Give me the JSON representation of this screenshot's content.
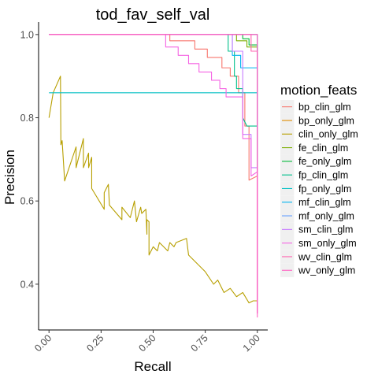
{
  "chart_data": {
    "type": "line",
    "title": "tod_fav_self_val",
    "xlabel": "Recall",
    "ylabel": "Precision",
    "xlim": [
      -0.05,
      1.05
    ],
    "ylim": [
      0.29,
      1.03
    ],
    "x_ticks": [
      0.0,
      0.25,
      0.5,
      0.75,
      1.0
    ],
    "x_tick_labels": [
      "0.00",
      "0.25",
      "0.50",
      "0.75",
      "1.00"
    ],
    "y_ticks": [
      0.4,
      0.6,
      0.8,
      1.0
    ],
    "y_tick_labels": [
      "0.4",
      "0.6",
      "0.8",
      "1.0"
    ],
    "grid": false,
    "legend": {
      "title": "motion_feats",
      "position": "right"
    },
    "series": [
      {
        "name": "bp_clin_glm",
        "color": "#F8766D",
        "points": [
          [
            0,
            1.0
          ],
          [
            0.58,
            1.0
          ],
          [
            0.58,
            0.985
          ],
          [
            0.7,
            0.985
          ],
          [
            0.7,
            0.965
          ],
          [
            0.76,
            0.965
          ],
          [
            0.76,
            0.945
          ],
          [
            0.83,
            0.945
          ],
          [
            0.83,
            0.92
          ],
          [
            0.87,
            0.92
          ],
          [
            0.87,
            0.9
          ],
          [
            0.91,
            0.9
          ],
          [
            0.91,
            0.86
          ],
          [
            0.94,
            0.86
          ],
          [
            0.94,
            0.78
          ],
          [
            0.96,
            0.78
          ],
          [
            0.96,
            0.65
          ],
          [
            1.0,
            0.66
          ],
          [
            1.0,
            0.33
          ]
        ]
      },
      {
        "name": "bp_only_glm",
        "color": "#DE8C00",
        "points": [
          [
            0,
            1.0
          ],
          [
            1.0,
            1.0
          ],
          [
            1.0,
            0.33
          ]
        ]
      },
      {
        "name": "clin_only_glm",
        "color": "#B79F00",
        "points": [
          [
            0,
            0.8
          ],
          [
            0.02,
            0.86
          ],
          [
            0.055,
            0.9
          ],
          [
            0.057,
            0.735
          ],
          [
            0.063,
            0.745
          ],
          [
            0.075,
            0.648
          ],
          [
            0.13,
            0.73
          ],
          [
            0.13,
            0.68
          ],
          [
            0.165,
            0.75
          ],
          [
            0.165,
            0.68
          ],
          [
            0.19,
            0.715
          ],
          [
            0.19,
            0.68
          ],
          [
            0.205,
            0.705
          ],
          [
            0.205,
            0.63
          ],
          [
            0.265,
            0.58
          ],
          [
            0.265,
            0.62
          ],
          [
            0.285,
            0.64
          ],
          [
            0.29,
            0.59
          ],
          [
            0.35,
            0.555
          ],
          [
            0.35,
            0.585
          ],
          [
            0.39,
            0.56
          ],
          [
            0.41,
            0.6
          ],
          [
            0.42,
            0.55
          ],
          [
            0.44,
            0.585
          ],
          [
            0.445,
            0.57
          ],
          [
            0.465,
            0.58
          ],
          [
            0.47,
            0.52
          ],
          [
            0.47,
            0.555
          ],
          [
            0.48,
            0.55
          ],
          [
            0.48,
            0.47
          ],
          [
            0.5,
            0.49
          ],
          [
            0.52,
            0.48
          ],
          [
            0.53,
            0.5
          ],
          [
            0.57,
            0.48
          ],
          [
            0.58,
            0.5
          ],
          [
            0.6,
            0.49
          ],
          [
            0.61,
            0.5
          ],
          [
            0.66,
            0.51
          ],
          [
            0.67,
            0.47
          ],
          [
            0.75,
            0.43
          ],
          [
            0.79,
            0.4
          ],
          [
            0.81,
            0.41
          ],
          [
            0.84,
            0.38
          ],
          [
            0.87,
            0.39
          ],
          [
            0.9,
            0.37
          ],
          [
            0.93,
            0.38
          ],
          [
            0.96,
            0.355
          ],
          [
            0.98,
            0.36
          ],
          [
            1.0,
            0.36
          ]
        ]
      },
      {
        "name": "fe_clin_glm",
        "color": "#7CAE00",
        "points": [
          [
            0,
            1.0
          ],
          [
            0.9,
            1.0
          ],
          [
            0.9,
            0.985
          ],
          [
            0.95,
            0.985
          ],
          [
            0.95,
            0.97
          ],
          [
            1.0,
            0.97
          ],
          [
            1.0,
            0.33
          ]
        ]
      },
      {
        "name": "fe_only_glm",
        "color": "#00BA38",
        "points": [
          [
            0,
            1.0
          ],
          [
            0.93,
            1.0
          ],
          [
            0.93,
            0.99
          ],
          [
            0.96,
            0.99
          ],
          [
            0.96,
            0.975
          ],
          [
            1.0,
            0.975
          ],
          [
            1.0,
            0.33
          ]
        ]
      },
      {
        "name": "fp_clin_glm",
        "color": "#00C08B",
        "points": [
          [
            0,
            1.0
          ],
          [
            0.86,
            1.0
          ],
          [
            0.86,
            0.96
          ],
          [
            0.89,
            0.96
          ],
          [
            0.89,
            0.9
          ],
          [
            0.9,
            0.9
          ],
          [
            0.9,
            0.87
          ],
          [
            0.93,
            0.87
          ],
          [
            0.93,
            0.8
          ],
          [
            0.95,
            0.78
          ],
          [
            1.0,
            0.78
          ],
          [
            1.0,
            0.33
          ]
        ]
      },
      {
        "name": "fp_only_glm",
        "color": "#00BFC4",
        "points": [
          [
            0,
            0.86
          ],
          [
            1.0,
            0.86
          ],
          [
            1.0,
            0.33
          ]
        ]
      },
      {
        "name": "mf_clin_glm",
        "color": "#00B4F0",
        "points": [
          [
            0,
            1.0
          ],
          [
            0.88,
            1.0
          ],
          [
            0.88,
            0.95
          ],
          [
            0.92,
            0.95
          ],
          [
            0.92,
            0.92
          ],
          [
            1.0,
            0.92
          ],
          [
            1.0,
            0.33
          ]
        ]
      },
      {
        "name": "mf_only_glm",
        "color": "#619CFF",
        "points": [
          [
            0,
            1.0
          ],
          [
            1.0,
            1.0
          ],
          [
            1.0,
            0.33
          ]
        ]
      },
      {
        "name": "sm_clin_glm",
        "color": "#C77CFF",
        "points": [
          [
            0,
            1.0
          ],
          [
            0.88,
            1.0
          ],
          [
            0.88,
            0.96
          ],
          [
            0.93,
            0.96
          ],
          [
            0.93,
            0.76
          ],
          [
            0.97,
            0.76
          ],
          [
            0.97,
            0.68
          ],
          [
            1.0,
            0.68
          ],
          [
            1.0,
            0.33
          ]
        ]
      },
      {
        "name": "sm_only_glm",
        "color": "#F564E3",
        "points": [
          [
            0,
            1.0
          ],
          [
            0.56,
            1.0
          ],
          [
            0.56,
            0.97
          ],
          [
            0.62,
            0.97
          ],
          [
            0.62,
            0.95
          ],
          [
            0.67,
            0.95
          ],
          [
            0.67,
            0.93
          ],
          [
            0.72,
            0.93
          ],
          [
            0.72,
            0.91
          ],
          [
            0.78,
            0.91
          ],
          [
            0.78,
            0.89
          ],
          [
            0.82,
            0.89
          ],
          [
            0.82,
            0.87
          ],
          [
            0.85,
            0.87
          ],
          [
            0.85,
            0.85
          ],
          [
            0.93,
            0.85
          ],
          [
            0.93,
            0.75
          ],
          [
            0.97,
            0.75
          ],
          [
            0.97,
            0.66
          ],
          [
            1.0,
            0.67
          ],
          [
            1.0,
            0.33
          ]
        ]
      },
      {
        "name": "wv_clin_glm",
        "color": "#FF64B0",
        "points": [
          [
            0,
            1.0
          ],
          [
            0.97,
            1.0
          ],
          [
            0.97,
            0.96
          ],
          [
            1.0,
            0.96
          ],
          [
            1.0,
            0.33
          ]
        ]
      },
      {
        "name": "wv_only_glm",
        "color": "#FF61C3",
        "points": [
          [
            0,
            1.0
          ],
          [
            1.0,
            1.0
          ],
          [
            1.0,
            0.32
          ]
        ]
      }
    ]
  }
}
